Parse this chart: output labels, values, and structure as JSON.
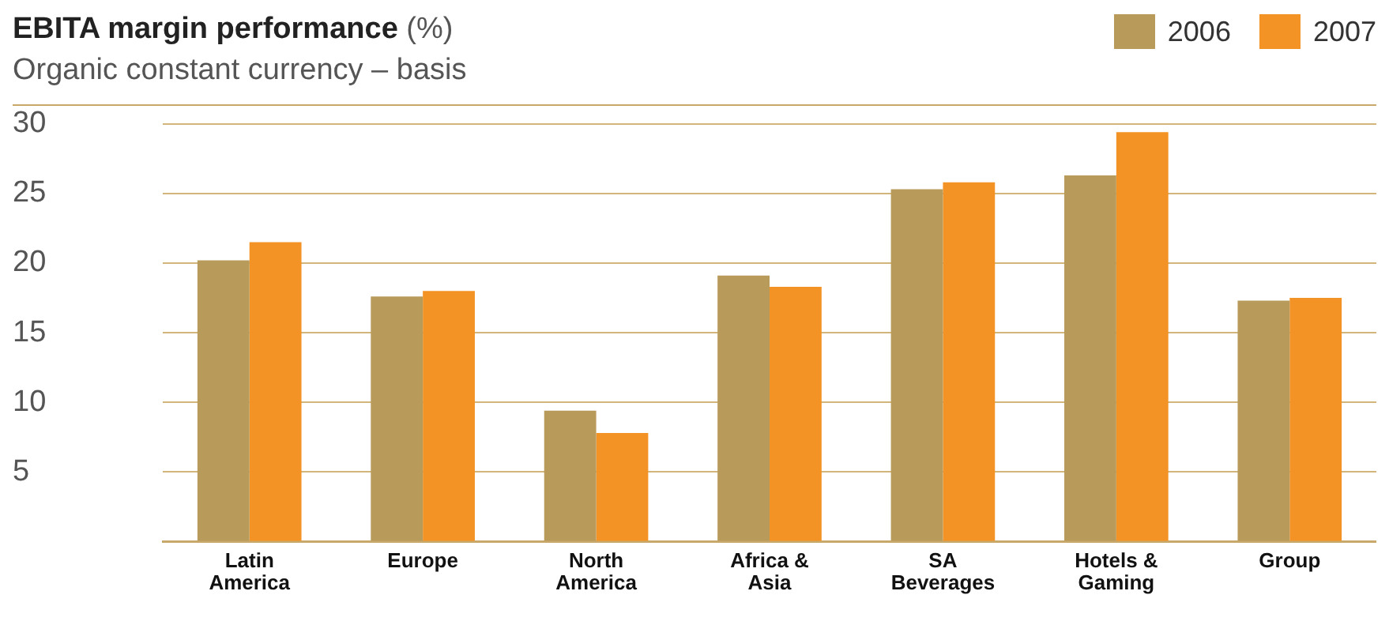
{
  "chart_data": {
    "type": "bar",
    "title": "EBITA margin performance (%)",
    "subtitle": "Organic constant currency – basis",
    "categories": [
      "Latin America",
      "Europe",
      "North America",
      "Africa & Asia",
      "SA Beverages",
      "Hotels & Gaming",
      "Group"
    ],
    "series": [
      {
        "name": "2006",
        "color": "#b89a5a",
        "values": [
          20.2,
          17.6,
          9.4,
          19.1,
          25.3,
          26.3,
          17.3
        ]
      },
      {
        "name": "2007",
        "color": "#f39325",
        "values": [
          21.5,
          18.0,
          7.8,
          18.3,
          25.8,
          29.4,
          17.5
        ]
      }
    ],
    "ylim": [
      0,
      30
    ],
    "yticks": [
      {
        "value": 0,
        "label": null
      },
      5,
      10,
      15,
      20,
      25,
      30
    ],
    "grid": "y",
    "legend": "top right"
  }
}
